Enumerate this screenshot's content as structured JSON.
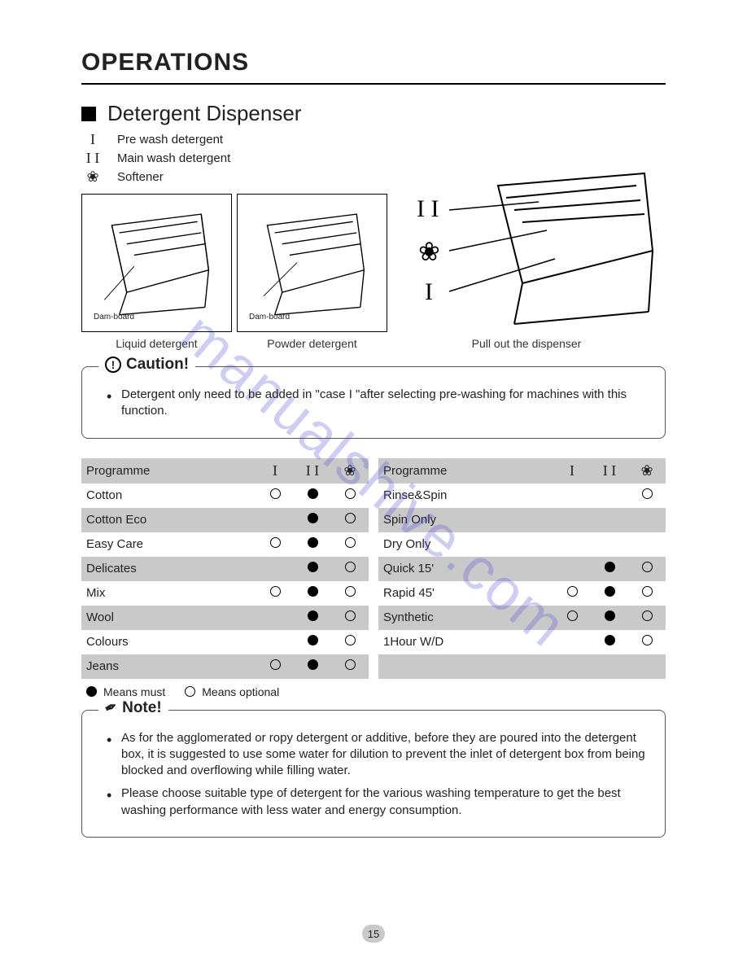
{
  "page_title": "OPERATIONS",
  "section": {
    "title": "Detergent Dispenser",
    "legend": [
      {
        "symbol": "I",
        "label": "Pre wash detergent"
      },
      {
        "symbol": "I I",
        "label": "Main wash detergent"
      },
      {
        "symbol": "❀",
        "label": "Softener"
      }
    ]
  },
  "diagrams": {
    "dam_label": "Dam-board",
    "captions": [
      "Liquid detergent",
      "Powder detergent",
      "Pull out the dispenser"
    ],
    "pullout_symbols": [
      "I I",
      "❀",
      "I"
    ]
  },
  "caution": {
    "label": "Caution!",
    "text": "Detergent only need to be added in \"case I \"after selecting pre-washing for machines with this function."
  },
  "table_left": {
    "header": "Programme",
    "cols": [
      "I",
      "I I",
      "❀"
    ],
    "rows": [
      {
        "name": "Cotton",
        "c": [
          "open",
          "filled",
          "open"
        ]
      },
      {
        "name": "Cotton Eco",
        "c": [
          "",
          "filled",
          "open"
        ]
      },
      {
        "name": "Easy Care",
        "c": [
          "open",
          "filled",
          "open"
        ]
      },
      {
        "name": "Delicates",
        "c": [
          "",
          "filled",
          "open"
        ]
      },
      {
        "name": "Mix",
        "c": [
          "open",
          "filled",
          "open"
        ]
      },
      {
        "name": "Wool",
        "c": [
          "",
          "filled",
          "open"
        ]
      },
      {
        "name": "Colours",
        "c": [
          "",
          "filled",
          "open"
        ]
      },
      {
        "name": "Jeans",
        "c": [
          "open",
          "filled",
          "open"
        ]
      }
    ]
  },
  "table_right": {
    "header": "Programme",
    "cols": [
      "I",
      "I I",
      "❀"
    ],
    "rows": [
      {
        "name": "Rinse&Spin",
        "c": [
          "",
          "",
          "open"
        ]
      },
      {
        "name": "Spin Only",
        "c": [
          "",
          "",
          ""
        ]
      },
      {
        "name": "Dry Only",
        "c": [
          "",
          "",
          ""
        ]
      },
      {
        "name": "Quick 15'",
        "c": [
          "",
          "filled",
          "open"
        ]
      },
      {
        "name": "Rapid 45'",
        "c": [
          "open",
          "filled",
          "open"
        ]
      },
      {
        "name": "Synthetic",
        "c": [
          "open",
          "filled",
          "open"
        ]
      },
      {
        "name": "1Hour  W/D",
        "c": [
          "",
          "filled",
          "open"
        ]
      },
      {
        "name": "",
        "c": [
          "",
          "",
          ""
        ]
      }
    ]
  },
  "key": {
    "must": "Means must",
    "optional": "Means optional"
  },
  "note": {
    "label": "Note!",
    "items": [
      "As for the agglomerated or ropy detergent or additive, before they are poured into the detergent box, it is suggested to use some water for dilution to prevent the inlet of detergent box from being blocked and overflowing while filling water.",
      "Please choose suitable type of detergent for the various washing temperature to get the best washing performance with less water and energy consumption."
    ]
  },
  "watermark": "manualshive.com",
  "page_number": "15",
  "colors": {
    "row_bg": "#c9c9c9",
    "text": "#222222",
    "watermark": "rgba(80,80,220,0.28)"
  }
}
